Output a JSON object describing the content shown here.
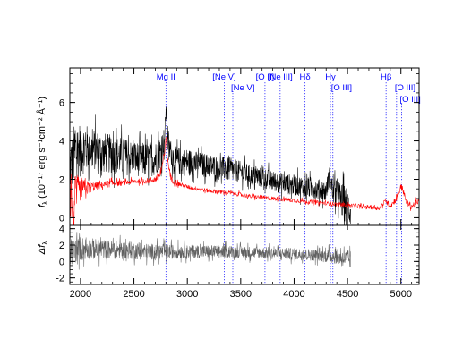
{
  "chart_data": [
    {
      "type": "line",
      "panel": "spectrum",
      "ylabel_parts": {
        "symbol": "f",
        "subscript": "λ",
        "units": "(10⁻¹⁷ erg s⁻¹cm⁻² Å⁻¹)"
      },
      "xlim": [
        1900,
        5170
      ],
      "ylim": [
        -0.4,
        7.8
      ],
      "yticks": [
        "0",
        "2",
        "4",
        "6"
      ],
      "ytick_values": [
        0,
        2,
        4,
        6
      ],
      "series": [
        {
          "color": "#000000",
          "x": [
            1900,
            1950,
            2000,
            2100,
            2200,
            2300,
            2400,
            2500,
            2600,
            2700,
            2750,
            2790,
            2800,
            2810,
            2830,
            2880,
            2950,
            3000,
            3100,
            3200,
            3300,
            3400,
            3500,
            3600,
            3700,
            3800,
            3900,
            4000,
            4100,
            4200,
            4300,
            4330,
            4360,
            4400,
            4450,
            4500,
            4530
          ],
          "y": [
            2.6,
            3.4,
            3.6,
            3.6,
            3.4,
            3.3,
            3.2,
            3.1,
            3.0,
            3.1,
            3.4,
            4.2,
            5.8,
            4.8,
            3.6,
            3.0,
            2.9,
            2.9,
            2.8,
            2.7,
            2.6,
            2.5,
            2.4,
            2.2,
            2.1,
            1.9,
            1.8,
            1.7,
            1.6,
            1.5,
            1.4,
            2.2,
            1.4,
            1.2,
            0.9,
            0.6,
            0.4
          ],
          "noise": [
            1.6,
            1.8,
            1.6,
            1.2,
            1.2,
            1.1,
            1.1,
            1.0,
            1.0,
            1.0,
            0.9,
            0.7,
            0.5,
            0.6,
            0.7,
            0.8,
            0.8,
            0.8,
            0.7,
            0.7,
            0.7,
            0.7,
            0.6,
            0.6,
            0.6,
            0.6,
            0.6,
            0.6,
            0.6,
            0.6,
            0.6,
            0.6,
            0.7,
            0.8,
            1.0,
            1.1,
            1.1
          ]
        },
        {
          "color": "#ff0000",
          "x": [
            1900,
            1930,
            1960,
            2000,
            2100,
            2200,
            2300,
            2400,
            2500,
            2600,
            2700,
            2750,
            2790,
            2800,
            2815,
            2850,
            2900,
            3000,
            3200,
            3400,
            3600,
            3800,
            4000,
            4200,
            4400,
            4600,
            4800,
            4860,
            4900,
            4959,
            5007,
            5050,
            5100,
            5170
          ],
          "y": [
            1.8,
            0.2,
            1.2,
            1.5,
            1.6,
            1.7,
            1.8,
            1.8,
            1.9,
            1.9,
            2.0,
            2.3,
            3.4,
            4.2,
            3.0,
            2.0,
            1.8,
            1.6,
            1.4,
            1.3,
            1.1,
            1.0,
            0.9,
            0.8,
            0.7,
            0.6,
            0.5,
            0.9,
            0.6,
            1.0,
            1.7,
            0.8,
            0.6,
            0.8
          ],
          "noise": [
            1.8,
            2.0,
            1.2,
            0.6,
            0.3,
            0.2,
            0.2,
            0.15,
            0.15,
            0.15,
            0.2,
            0.3,
            0.2,
            0.2,
            0.2,
            0.2,
            0.15,
            0.12,
            0.12,
            0.12,
            0.12,
            0.12,
            0.12,
            0.12,
            0.12,
            0.12,
            0.12,
            0.15,
            0.15,
            0.2,
            0.2,
            0.15,
            0.2,
            0.25
          ]
        }
      ],
      "lines": [
        {
          "wavelength": 2800,
          "label": "Mg II",
          "row": 1
        },
        {
          "wavelength": 3346,
          "label": "[Ne V]",
          "row": 1
        },
        {
          "wavelength": 3426,
          "label": "[Ne V]",
          "row": 2
        },
        {
          "wavelength": 3727,
          "label": "[O II]",
          "row": 1
        },
        {
          "wavelength": 3869,
          "label": "[Ne III]",
          "row": 1
        },
        {
          "wavelength": 4102,
          "label": "Hδ",
          "row": 1
        },
        {
          "wavelength": 4340,
          "label": "Hγ",
          "row": 1
        },
        {
          "wavelength": 4363,
          "label": "[O III]",
          "row": 2
        },
        {
          "wavelength": 4861,
          "label": "Hβ",
          "row": 1
        },
        {
          "wavelength": 4959,
          "label": "[O III]",
          "row": 2
        },
        {
          "wavelength": 5007,
          "label": "[O III]",
          "row": 3
        }
      ]
    },
    {
      "type": "line",
      "panel": "residual",
      "ylabel_parts": {
        "symbol": "Δf",
        "subscript": "λ"
      },
      "xlim": [
        1900,
        5170
      ],
      "ylim": [
        -2.8,
        4.4
      ],
      "yticks": [
        "4",
        "2",
        "0",
        "-2"
      ],
      "ytick_values": [
        4,
        2,
        0,
        -2
      ],
      "xticks": [
        "2000",
        "2500",
        "3000",
        "3500",
        "4000",
        "4500",
        "5000"
      ],
      "xtick_values": [
        2000,
        2500,
        3000,
        3500,
        4000,
        4500,
        5000
      ],
      "series": [
        {
          "color": "#606060",
          "x": [
            1900,
            2000,
            2200,
            2400,
            2600,
            2800,
            3000,
            3200,
            3400,
            3600,
            3800,
            4000,
            4200,
            4400,
            4530
          ],
          "y": [
            1.0,
            1.6,
            1.5,
            1.4,
            1.2,
            1.2,
            1.2,
            1.2,
            1.2,
            1.1,
            1.0,
            0.9,
            0.8,
            0.6,
            0.2
          ],
          "noise": [
            1.8,
            1.6,
            1.3,
            1.2,
            1.1,
            1.0,
            0.9,
            0.9,
            0.8,
            0.8,
            0.8,
            0.8,
            0.8,
            1.0,
            1.2
          ]
        }
      ]
    }
  ],
  "colors": {
    "line_marker": "#2a2aff",
    "label": "#0000ff",
    "axis": "#000000"
  }
}
